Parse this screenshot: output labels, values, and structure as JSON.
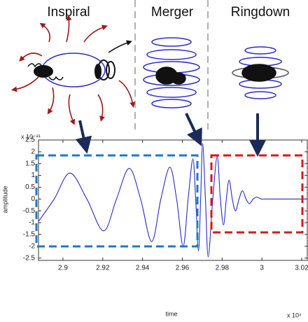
{
  "chart_data": {
    "type": "line",
    "phase_labels": [
      "Inspiral",
      "Merger",
      "Ringdown"
    ],
    "y_multiplier": "x 10⁻²¹",
    "x_multiplier": "x 10⁴",
    "xlabel": "time",
    "ylabel": "amplitude",
    "x": [
      2.8877,
      2.8956,
      2.9035,
      2.912,
      2.9204,
      2.9269,
      2.9333,
      2.939,
      2.9446,
      2.9492,
      2.9537,
      2.9571,
      2.9604,
      2.9629,
      2.9653,
      2.9667,
      2.9681,
      2.9692,
      2.9702,
      2.9716,
      2.973,
      2.9753,
      2.9775,
      2.9791,
      2.9807,
      2.9821,
      2.9835,
      2.9851,
      2.9867,
      2.9885,
      2.9902,
      2.992,
      2.9937,
      2.9956,
      2.9975,
      2.9997,
      3.0018,
      3.0228
    ],
    "values": [
      -0.95,
      0,
      1.1,
      0,
      -1.35,
      0,
      1.3,
      0,
      -1.8,
      0,
      1.35,
      0,
      -2.0,
      0,
      1.7,
      0,
      -2.2,
      0,
      2.35,
      0,
      -2.45,
      0,
      1.8,
      0,
      -1.1,
      0,
      0.8,
      0,
      -0.5,
      0,
      0.35,
      0,
      -0.2,
      0,
      0.08,
      0,
      0,
      0
    ],
    "color": "#2a2ad0",
    "xlim": [
      2.8877,
      3.0228
    ],
    "xticks": [
      2.9,
      2.92,
      2.94,
      2.96,
      2.98,
      3,
      3.02
    ],
    "ylim": [
      -2.6,
      2.5
    ],
    "yticks": [
      -2.5,
      -2,
      -1.5,
      -1,
      -0.5,
      0,
      0.5,
      1,
      1.5,
      2,
      2.5
    ],
    "grid": false
  }
}
